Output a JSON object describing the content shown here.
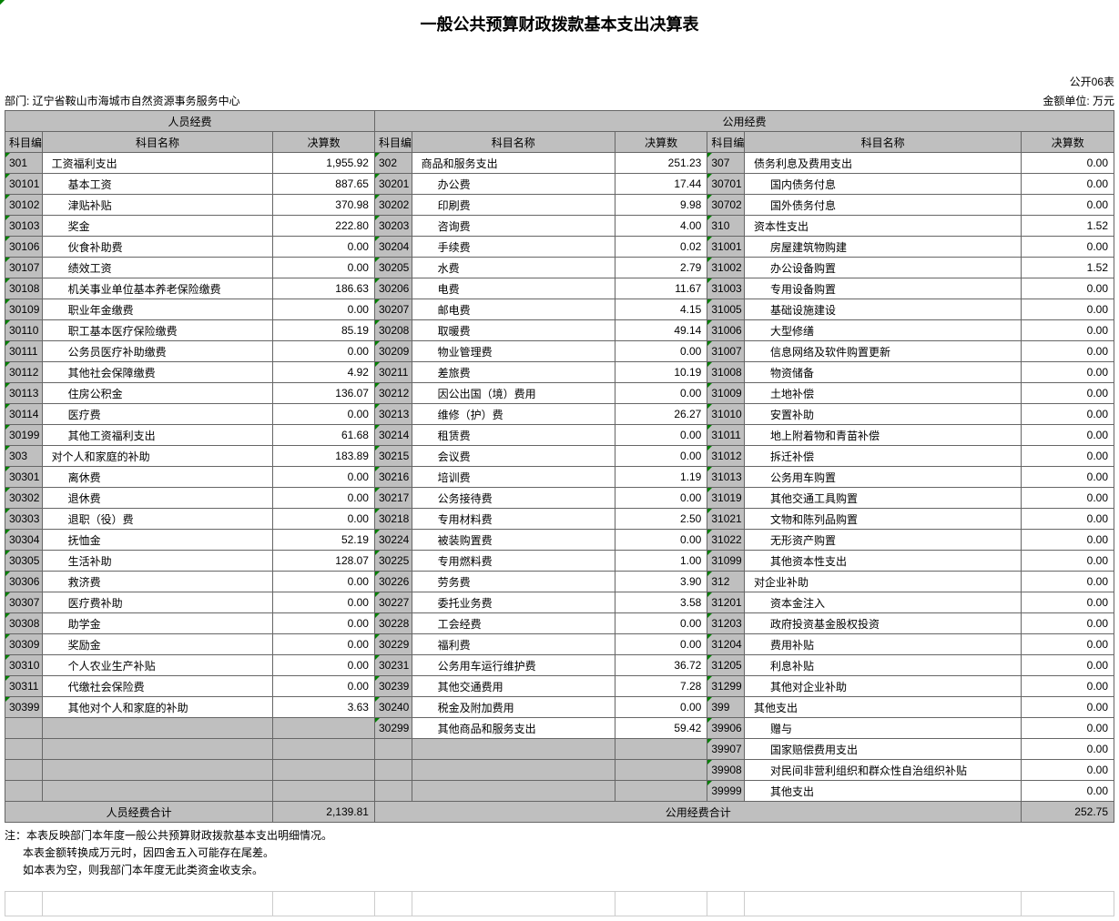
{
  "title": "一般公共预算财政拨款基本支出决算表",
  "table_no": "公开06表",
  "dept_label": "部门: 辽宁省鞍山市海城市自然资源事务服务中心",
  "unit_label": "金额单位: 万元",
  "headers": {
    "group1": "人员经费",
    "group2": "公用经费",
    "code": "科目编码",
    "name": "科目名称",
    "value": "决算数"
  },
  "col1": [
    {
      "code": "301",
      "name": "工资福利支出",
      "val": "1,955.92",
      "indent": false
    },
    {
      "code": "30101",
      "name": "基本工资",
      "val": "887.65",
      "indent": true
    },
    {
      "code": "30102",
      "name": "津贴补贴",
      "val": "370.98",
      "indent": true
    },
    {
      "code": "30103",
      "name": "奖金",
      "val": "222.80",
      "indent": true
    },
    {
      "code": "30106",
      "name": "伙食补助费",
      "val": "0.00",
      "indent": true
    },
    {
      "code": "30107",
      "name": "绩效工资",
      "val": "0.00",
      "indent": true
    },
    {
      "code": "30108",
      "name": "机关事业单位基本养老保险缴费",
      "val": "186.63",
      "indent": true
    },
    {
      "code": "30109",
      "name": "职业年金缴费",
      "val": "0.00",
      "indent": true
    },
    {
      "code": "30110",
      "name": "职工基本医疗保险缴费",
      "val": "85.19",
      "indent": true
    },
    {
      "code": "30111",
      "name": "公务员医疗补助缴费",
      "val": "0.00",
      "indent": true
    },
    {
      "code": "30112",
      "name": "其他社会保障缴费",
      "val": "4.92",
      "indent": true
    },
    {
      "code": "30113",
      "name": "住房公积金",
      "val": "136.07",
      "indent": true
    },
    {
      "code": "30114",
      "name": "医疗费",
      "val": "0.00",
      "indent": true
    },
    {
      "code": "30199",
      "name": "其他工资福利支出",
      "val": "61.68",
      "indent": true
    },
    {
      "code": "303",
      "name": "对个人和家庭的补助",
      "val": "183.89",
      "indent": false
    },
    {
      "code": "30301",
      "name": "离休费",
      "val": "0.00",
      "indent": true
    },
    {
      "code": "30302",
      "name": "退休费",
      "val": "0.00",
      "indent": true
    },
    {
      "code": "30303",
      "name": "退职（役）费",
      "val": "0.00",
      "indent": true
    },
    {
      "code": "30304",
      "name": "抚恤金",
      "val": "52.19",
      "indent": true
    },
    {
      "code": "30305",
      "name": "生活补助",
      "val": "128.07",
      "indent": true
    },
    {
      "code": "30306",
      "name": "救济费",
      "val": "0.00",
      "indent": true
    },
    {
      "code": "30307",
      "name": "医疗费补助",
      "val": "0.00",
      "indent": true
    },
    {
      "code": "30308",
      "name": "助学金",
      "val": "0.00",
      "indent": true
    },
    {
      "code": "30309",
      "name": "奖励金",
      "val": "0.00",
      "indent": true
    },
    {
      "code": "30310",
      "name": "个人农业生产补贴",
      "val": "0.00",
      "indent": true
    },
    {
      "code": "30311",
      "name": "代缴社会保险费",
      "val": "0.00",
      "indent": true
    },
    {
      "code": "30399",
      "name": "其他对个人和家庭的补助",
      "val": "3.63",
      "indent": true
    }
  ],
  "col2": [
    {
      "code": "302",
      "name": "商品和服务支出",
      "val": "251.23",
      "indent": false
    },
    {
      "code": "30201",
      "name": "办公费",
      "val": "17.44",
      "indent": true
    },
    {
      "code": "30202",
      "name": "印刷费",
      "val": "9.98",
      "indent": true
    },
    {
      "code": "30203",
      "name": "咨询费",
      "val": "4.00",
      "indent": true
    },
    {
      "code": "30204",
      "name": "手续费",
      "val": "0.02",
      "indent": true
    },
    {
      "code": "30205",
      "name": "水费",
      "val": "2.79",
      "indent": true
    },
    {
      "code": "30206",
      "name": "电费",
      "val": "11.67",
      "indent": true
    },
    {
      "code": "30207",
      "name": "邮电费",
      "val": "4.15",
      "indent": true
    },
    {
      "code": "30208",
      "name": "取暖费",
      "val": "49.14",
      "indent": true
    },
    {
      "code": "30209",
      "name": "物业管理费",
      "val": "0.00",
      "indent": true
    },
    {
      "code": "30211",
      "name": "差旅费",
      "val": "10.19",
      "indent": true
    },
    {
      "code": "30212",
      "name": "因公出国（境）费用",
      "val": "0.00",
      "indent": true
    },
    {
      "code": "30213",
      "name": "维修（护）费",
      "val": "26.27",
      "indent": true
    },
    {
      "code": "30214",
      "name": "租赁费",
      "val": "0.00",
      "indent": true
    },
    {
      "code": "30215",
      "name": "会议费",
      "val": "0.00",
      "indent": true
    },
    {
      "code": "30216",
      "name": "培训费",
      "val": "1.19",
      "indent": true
    },
    {
      "code": "30217",
      "name": "公务接待费",
      "val": "0.00",
      "indent": true
    },
    {
      "code": "30218",
      "name": "专用材料费",
      "val": "2.50",
      "indent": true
    },
    {
      "code": "30224",
      "name": "被装购置费",
      "val": "0.00",
      "indent": true
    },
    {
      "code": "30225",
      "name": "专用燃料费",
      "val": "1.00",
      "indent": true
    },
    {
      "code": "30226",
      "name": "劳务费",
      "val": "3.90",
      "indent": true
    },
    {
      "code": "30227",
      "name": "委托业务费",
      "val": "3.58",
      "indent": true
    },
    {
      "code": "30228",
      "name": "工会经费",
      "val": "0.00",
      "indent": true
    },
    {
      "code": "30229",
      "name": "福利费",
      "val": "0.00",
      "indent": true
    },
    {
      "code": "30231",
      "name": "公务用车运行维护费",
      "val": "36.72",
      "indent": true
    },
    {
      "code": "30239",
      "name": "其他交通费用",
      "val": "7.28",
      "indent": true
    },
    {
      "code": "30240",
      "name": "税金及附加费用",
      "val": "0.00",
      "indent": true
    },
    {
      "code": "30299",
      "name": "其他商品和服务支出",
      "val": "59.42",
      "indent": true
    }
  ],
  "col3": [
    {
      "code": "307",
      "name": "债务利息及费用支出",
      "val": "0.00",
      "indent": false
    },
    {
      "code": "30701",
      "name": "国内债务付息",
      "val": "0.00",
      "indent": true
    },
    {
      "code": "30702",
      "name": "国外债务付息",
      "val": "0.00",
      "indent": true
    },
    {
      "code": "310",
      "name": "资本性支出",
      "val": "1.52",
      "indent": false
    },
    {
      "code": "31001",
      "name": "房屋建筑物购建",
      "val": "0.00",
      "indent": true
    },
    {
      "code": "31002",
      "name": "办公设备购置",
      "val": "1.52",
      "indent": true
    },
    {
      "code": "31003",
      "name": "专用设备购置",
      "val": "0.00",
      "indent": true
    },
    {
      "code": "31005",
      "name": "基础设施建设",
      "val": "0.00",
      "indent": true
    },
    {
      "code": "31006",
      "name": "大型修缮",
      "val": "0.00",
      "indent": true
    },
    {
      "code": "31007",
      "name": "信息网络及软件购置更新",
      "val": "0.00",
      "indent": true
    },
    {
      "code": "31008",
      "name": "物资储备",
      "val": "0.00",
      "indent": true
    },
    {
      "code": "31009",
      "name": "土地补偿",
      "val": "0.00",
      "indent": true
    },
    {
      "code": "31010",
      "name": "安置补助",
      "val": "0.00",
      "indent": true
    },
    {
      "code": "31011",
      "name": "地上附着物和青苗补偿",
      "val": "0.00",
      "indent": true
    },
    {
      "code": "31012",
      "name": "拆迁补偿",
      "val": "0.00",
      "indent": true
    },
    {
      "code": "31013",
      "name": "公务用车购置",
      "val": "0.00",
      "indent": true
    },
    {
      "code": "31019",
      "name": "其他交通工具购置",
      "val": "0.00",
      "indent": true
    },
    {
      "code": "31021",
      "name": "文物和陈列品购置",
      "val": "0.00",
      "indent": true
    },
    {
      "code": "31022",
      "name": "无形资产购置",
      "val": "0.00",
      "indent": true
    },
    {
      "code": "31099",
      "name": "其他资本性支出",
      "val": "0.00",
      "indent": true
    },
    {
      "code": "312",
      "name": "对企业补助",
      "val": "0.00",
      "indent": false
    },
    {
      "code": "31201",
      "name": "资本金注入",
      "val": "0.00",
      "indent": true
    },
    {
      "code": "31203",
      "name": "政府投资基金股权投资",
      "val": "0.00",
      "indent": true
    },
    {
      "code": "31204",
      "name": "费用补贴",
      "val": "0.00",
      "indent": true
    },
    {
      "code": "31205",
      "name": "利息补贴",
      "val": "0.00",
      "indent": true
    },
    {
      "code": "31299",
      "name": "其他对企业补助",
      "val": "0.00",
      "indent": true
    },
    {
      "code": "399",
      "name": "其他支出",
      "val": "0.00",
      "indent": false
    },
    {
      "code": "39906",
      "name": "赠与",
      "val": "0.00",
      "indent": true
    },
    {
      "code": "39907",
      "name": "国家赔偿费用支出",
      "val": "0.00",
      "indent": true
    },
    {
      "code": "39908",
      "name": "对民间非营利组织和群众性自治组织补贴",
      "val": "0.00",
      "indent": true
    },
    {
      "code": "39999",
      "name": "其他支出",
      "val": "0.00",
      "indent": true
    }
  ],
  "totals": {
    "label1": "人员经费合计",
    "val1": "2,139.81",
    "label2": "公用经费合计",
    "val2": "252.75"
  },
  "notes": [
    "注：本表反映部门本年度一般公共预算财政拨款基本支出明细情况。",
    "本表金额转换成万元时，因四舍五入可能存在尾差。",
    "如本表为空，则我部门本年度无此类资金收支余。"
  ]
}
